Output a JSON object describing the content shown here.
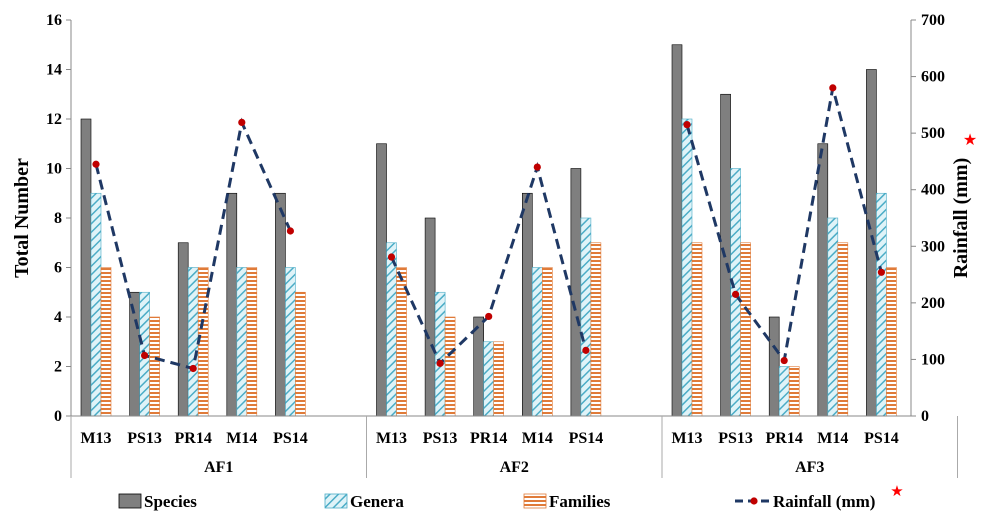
{
  "chart_data": {
    "type": "bar",
    "groups": [
      "AF1",
      "AF2",
      "AF3"
    ],
    "categories": [
      "M13",
      "PS13",
      "PR14",
      "M14",
      "PS14"
    ],
    "series": [
      {
        "name": "Species",
        "color": "#7f7f7f",
        "pattern": "solid",
        "values": [
          [
            12,
            5,
            7,
            9,
            9
          ],
          [
            11,
            8,
            4,
            9,
            10
          ],
          [
            15,
            13,
            4,
            11,
            14
          ]
        ]
      },
      {
        "name": "Genera",
        "color": "#4bacc6",
        "pattern": "diagonal-hatch",
        "values": [
          [
            9,
            5,
            6,
            6,
            6
          ],
          [
            7,
            5,
            3,
            6,
            8
          ],
          [
            12,
            10,
            2,
            8,
            9
          ]
        ]
      },
      {
        "name": "Families",
        "color": "#e07b39",
        "pattern": "horizontal-lines",
        "values": [
          [
            6,
            4,
            6,
            6,
            5
          ],
          [
            6,
            4,
            3,
            6,
            7
          ],
          [
            7,
            7,
            2,
            7,
            6
          ]
        ]
      }
    ],
    "line_series": {
      "name": "Rainfall (mm)",
      "axis": "right",
      "line_color": "#1f3864",
      "marker_color": "#c00000",
      "style": "dashed",
      "values": [
        [
          445,
          107,
          84,
          519,
          327
        ],
        [
          281,
          93,
          176,
          440,
          116
        ],
        [
          515,
          215,
          98,
          580,
          254
        ]
      ]
    },
    "ylabel": "Total Number",
    "y2label": "Rainfall (mm)",
    "ylim": [
      0,
      16
    ],
    "yticks": [
      0,
      2,
      4,
      6,
      8,
      10,
      12,
      14,
      16
    ],
    "y2lim": [
      0,
      700
    ],
    "y2ticks": [
      0,
      100,
      200,
      300,
      400,
      500,
      600,
      700
    ],
    "legend_position": "bottom",
    "star_color": "#ff0000",
    "star_glyph": "★",
    "grid": false
  }
}
